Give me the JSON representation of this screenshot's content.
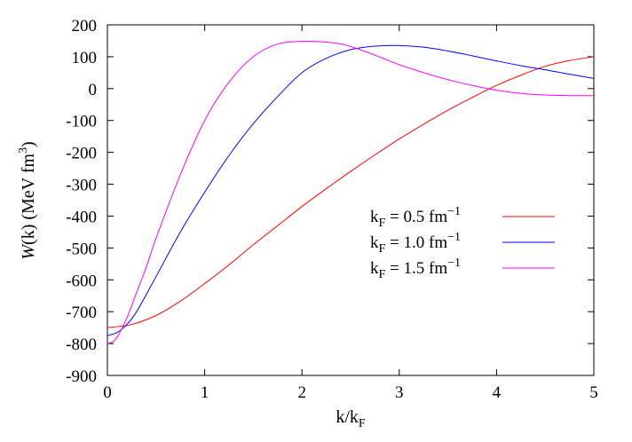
{
  "chart_data": {
    "type": "line",
    "title": "",
    "xlabel": {
      "main": "k/k",
      "sub": "F"
    },
    "ylabel": {
      "italic": "W",
      "main": "(k)   (MeV fm",
      "sup": "3",
      "end": ")"
    },
    "xlim": [
      0,
      5
    ],
    "ylim": [
      -900,
      200
    ],
    "xticks": [
      0,
      1,
      2,
      3,
      4,
      5
    ],
    "yticks": [
      -900,
      -800,
      -700,
      -600,
      -500,
      -400,
      -300,
      -200,
      -100,
      0,
      100,
      200
    ],
    "grid": false,
    "legend_position": "right",
    "series": [
      {
        "legend": {
          "k": "k",
          "sub": "F",
          "eq": " = 0.5 fm",
          "sup": "−1"
        },
        "color": "#ff0000",
        "x": [
          0,
          0.25,
          0.5,
          0.75,
          1.0,
          1.25,
          1.5,
          1.75,
          2.0,
          2.25,
          2.5,
          2.75,
          3.0,
          3.25,
          3.5,
          3.75,
          4.0,
          4.25,
          4.5,
          4.75,
          5.0
        ],
        "y": [
          -750,
          -740,
          -712,
          -667,
          -612,
          -553,
          -490,
          -430,
          -370,
          -314,
          -260,
          -208,
          -158,
          -112,
          -68,
          -28,
          10,
          42,
          70,
          88,
          100
        ]
      },
      {
        "legend": {
          "k": "k",
          "sub": "F",
          "eq": " = 1.0 fm",
          "sup": "−1"
        },
        "color": "#0000ff",
        "x": [
          0,
          0.1,
          0.2,
          0.3,
          0.5,
          0.75,
          1.0,
          1.25,
          1.5,
          1.75,
          2.0,
          2.25,
          2.5,
          2.75,
          3.0,
          3.25,
          3.5,
          3.75,
          4.0,
          4.25,
          4.5,
          4.75,
          5.0
        ],
        "y": [
          -775,
          -765,
          -740,
          -700,
          -590,
          -450,
          -325,
          -210,
          -110,
          -25,
          50,
          95,
          122,
          133,
          135,
          130,
          118,
          103,
          87,
          72,
          59,
          45,
          32
        ]
      },
      {
        "legend": {
          "k": "k",
          "sub": "F",
          "eq": " = 1.5 fm",
          "sup": "−1"
        },
        "color": "#ff00ff",
        "x": [
          0,
          0.05,
          0.1,
          0.2,
          0.3,
          0.4,
          0.5,
          0.75,
          1.0,
          1.25,
          1.5,
          1.75,
          2.0,
          2.2,
          2.4,
          2.6,
          2.8,
          3.0,
          3.25,
          3.5,
          3.75,
          4.0,
          4.25,
          4.5,
          4.75,
          5.0
        ],
        "y": [
          -800,
          -795,
          -780,
          -720,
          -640,
          -560,
          -470,
          -270,
          -100,
          20,
          100,
          140,
          148,
          147,
          140,
          122,
          99,
          75,
          50,
          28,
          10,
          -5,
          -15,
          -20,
          -22,
          -22
        ]
      }
    ]
  }
}
